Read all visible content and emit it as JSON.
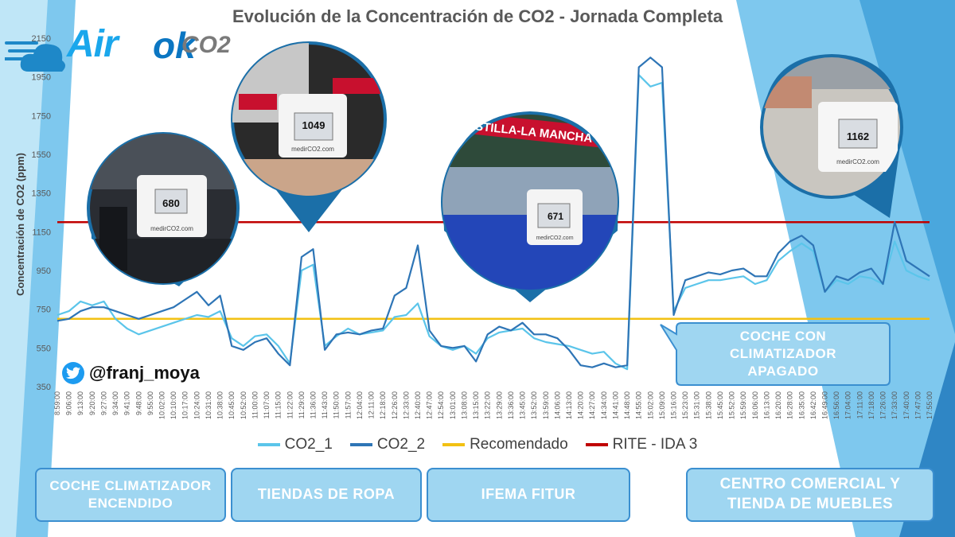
{
  "title": "Evolución de la Concentración de CO2 - Jornada Completa",
  "logo": {
    "air": "Air",
    "ok": "ok",
    "co2": "CO2",
    "brand_colors": [
      "#1aa7ec",
      "#0b76c2",
      "#7a7a7a"
    ]
  },
  "twitter": {
    "icon": "twitter-bird-icon",
    "handle": "@franj_moya"
  },
  "photos": [
    {
      "icon": "car-dashboard-photo",
      "reading": "680",
      "site": "medirCO2.com"
    },
    {
      "icon": "clothing-store-photo",
      "reading": "1049",
      "site": "medirCO2.com"
    },
    {
      "icon": "trade-fair-photo",
      "reading": "671",
      "banner": "CASTILLA-LA MANCHA",
      "site": "medirCO2.com"
    },
    {
      "icon": "furniture-store-photo",
      "reading": "1162",
      "site": "medirCO2.com"
    }
  ],
  "boxes": [
    {
      "label": "COCHE CLIMATIZADOR ENCENDIDO"
    },
    {
      "label": "TIENDAS DE ROPA"
    },
    {
      "label": "IFEMA FITUR"
    },
    {
      "label": "CENTRO COMERCIAL Y TIENDA DE MUEBLES"
    },
    {
      "label": "COCHE CON CLIMATIZADOR APAGADO"
    }
  ],
  "chart_data": {
    "type": "line",
    "title": "Evolución de la Concentración de CO2 - Jornada Completa",
    "xlabel": "",
    "ylabel": "Concentración de CO2 (ppm)",
    "ylim": [
      350,
      2150
    ],
    "yticks": [
      350,
      550,
      750,
      950,
      1150,
      1350,
      1550,
      1750,
      1950,
      2150
    ],
    "xticks": [
      "8:59:00",
      "9:06:00",
      "9:13:00",
      "9:20:00",
      "9:27:00",
      "9:34:00",
      "9:41:00",
      "9:48:00",
      "9:55:00",
      "10:02:00",
      "10:10:00",
      "10:17:00",
      "10:24:00",
      "10:31:00",
      "10:38:00",
      "10:45:00",
      "10:52:00",
      "11:00:00",
      "11:07:00",
      "11:15:00",
      "11:22:00",
      "11:29:00",
      "11:36:00",
      "11:43:00",
      "11:50:00",
      "11:57:00",
      "12:04:00",
      "12:11:00",
      "12:18:00",
      "12:26:00",
      "12:33:00",
      "12:40:00",
      "12:47:00",
      "12:54:00",
      "13:01:00",
      "13:08:00",
      "13:15:00",
      "13:22:00",
      "13:29:00",
      "13:36:00",
      "13:45:00",
      "13:52:00",
      "13:59:00",
      "14:06:00",
      "14:13:00",
      "14:20:00",
      "14:27:00",
      "14:34:00",
      "14:41:00",
      "14:48:00",
      "14:55:00",
      "15:02:00",
      "15:09:00",
      "15:16:00",
      "15:23:00",
      "15:31:00",
      "15:38:00",
      "15:45:00",
      "15:52:00",
      "15:59:00",
      "16:06:00",
      "16:13:00",
      "16:20:00",
      "16:28:00",
      "16:35:00",
      "16:42:00",
      "16:49:00",
      "16:56:00",
      "17:04:00",
      "17:11:00",
      "17:18:00",
      "17:26:00",
      "17:33:00",
      "17:40:00",
      "17:47:00",
      "17:55:00"
    ],
    "legend_position": "bottom",
    "grid": false,
    "series": [
      {
        "name": "CO2_1",
        "color": "#5bc5ea",
        "points": [
          [
            0,
            720
          ],
          [
            1,
            740
          ],
          [
            2,
            790
          ],
          [
            3,
            770
          ],
          [
            4,
            790
          ],
          [
            5,
            700
          ],
          [
            6,
            650
          ],
          [
            7,
            620
          ],
          [
            8,
            640
          ],
          [
            9,
            660
          ],
          [
            10,
            680
          ],
          [
            11,
            700
          ],
          [
            12,
            720
          ],
          [
            13,
            710
          ],
          [
            14,
            740
          ],
          [
            15,
            600
          ],
          [
            16,
            560
          ],
          [
            17,
            610
          ],
          [
            18,
            620
          ],
          [
            19,
            560
          ],
          [
            20,
            470
          ],
          [
            21,
            950
          ],
          [
            22,
            980
          ],
          [
            23,
            560
          ],
          [
            24,
            610
          ],
          [
            25,
            650
          ],
          [
            26,
            620
          ],
          [
            27,
            630
          ],
          [
            28,
            640
          ],
          [
            29,
            710
          ],
          [
            30,
            720
          ],
          [
            31,
            780
          ],
          [
            32,
            610
          ],
          [
            33,
            560
          ],
          [
            34,
            540
          ],
          [
            35,
            560
          ],
          [
            36,
            520
          ],
          [
            37,
            600
          ],
          [
            38,
            630
          ],
          [
            39,
            640
          ],
          [
            40,
            650
          ],
          [
            41,
            600
          ],
          [
            42,
            580
          ],
          [
            43,
            570
          ],
          [
            44,
            560
          ],
          [
            45,
            540
          ],
          [
            46,
            520
          ],
          [
            47,
            530
          ],
          [
            48,
            470
          ],
          [
            49,
            440
          ],
          [
            50,
            1960
          ],
          [
            51,
            1900
          ],
          [
            52,
            1920
          ],
          [
            53,
            740
          ],
          [
            54,
            860
          ],
          [
            55,
            880
          ],
          [
            56,
            900
          ],
          [
            57,
            900
          ],
          [
            58,
            910
          ],
          [
            59,
            920
          ],
          [
            60,
            880
          ],
          [
            61,
            900
          ],
          [
            62,
            1000
          ],
          [
            63,
            1050
          ],
          [
            64,
            1090
          ],
          [
            65,
            1050
          ],
          [
            66,
            840
          ],
          [
            67,
            900
          ],
          [
            68,
            880
          ],
          [
            69,
            920
          ],
          [
            70,
            910
          ],
          [
            71,
            880
          ],
          [
            72,
            1100
          ],
          [
            73,
            950
          ],
          [
            74,
            920
          ],
          [
            75,
            900
          ]
        ]
      },
      {
        "name": "CO2_2",
        "color": "#2e75b6",
        "points": [
          [
            0,
            690
          ],
          [
            1,
            700
          ],
          [
            2,
            740
          ],
          [
            3,
            760
          ],
          [
            4,
            760
          ],
          [
            5,
            740
          ],
          [
            6,
            720
          ],
          [
            7,
            700
          ],
          [
            8,
            720
          ],
          [
            9,
            740
          ],
          [
            10,
            760
          ],
          [
            11,
            800
          ],
          [
            12,
            840
          ],
          [
            13,
            770
          ],
          [
            14,
            820
          ],
          [
            15,
            560
          ],
          [
            16,
            540
          ],
          [
            17,
            580
          ],
          [
            18,
            600
          ],
          [
            19,
            520
          ],
          [
            20,
            460
          ],
          [
            21,
            1020
          ],
          [
            22,
            1060
          ],
          [
            23,
            540
          ],
          [
            24,
            620
          ],
          [
            25,
            630
          ],
          [
            26,
            620
          ],
          [
            27,
            640
          ],
          [
            28,
            650
          ],
          [
            29,
            820
          ],
          [
            30,
            860
          ],
          [
            31,
            1080
          ],
          [
            32,
            640
          ],
          [
            33,
            560
          ],
          [
            34,
            550
          ],
          [
            35,
            560
          ],
          [
            36,
            480
          ],
          [
            37,
            620
          ],
          [
            38,
            660
          ],
          [
            39,
            640
          ],
          [
            40,
            680
          ],
          [
            41,
            620
          ],
          [
            42,
            620
          ],
          [
            43,
            600
          ],
          [
            44,
            540
          ],
          [
            45,
            460
          ],
          [
            46,
            450
          ],
          [
            47,
            470
          ],
          [
            48,
            450
          ],
          [
            49,
            460
          ],
          [
            50,
            2000
          ],
          [
            51,
            2050
          ],
          [
            52,
            2000
          ],
          [
            53,
            720
          ],
          [
            54,
            900
          ],
          [
            55,
            920
          ],
          [
            56,
            940
          ],
          [
            57,
            930
          ],
          [
            58,
            950
          ],
          [
            59,
            960
          ],
          [
            60,
            920
          ],
          [
            61,
            920
          ],
          [
            62,
            1040
          ],
          [
            63,
            1100
          ],
          [
            64,
            1130
          ],
          [
            65,
            1080
          ],
          [
            66,
            840
          ],
          [
            67,
            920
          ],
          [
            68,
            900
          ],
          [
            69,
            940
          ],
          [
            70,
            960
          ],
          [
            71,
            880
          ],
          [
            72,
            1200
          ],
          [
            73,
            1000
          ],
          [
            74,
            960
          ],
          [
            75,
            920
          ]
        ]
      },
      {
        "name": "Recomendado",
        "color": "#f2c113",
        "points": [
          [
            0,
            700
          ],
          [
            75,
            700
          ]
        ]
      },
      {
        "name": "RITE - IDA 3",
        "color": "#c00000",
        "points": [
          [
            0,
            1200
          ],
          [
            75,
            1200
          ]
        ]
      }
    ]
  }
}
